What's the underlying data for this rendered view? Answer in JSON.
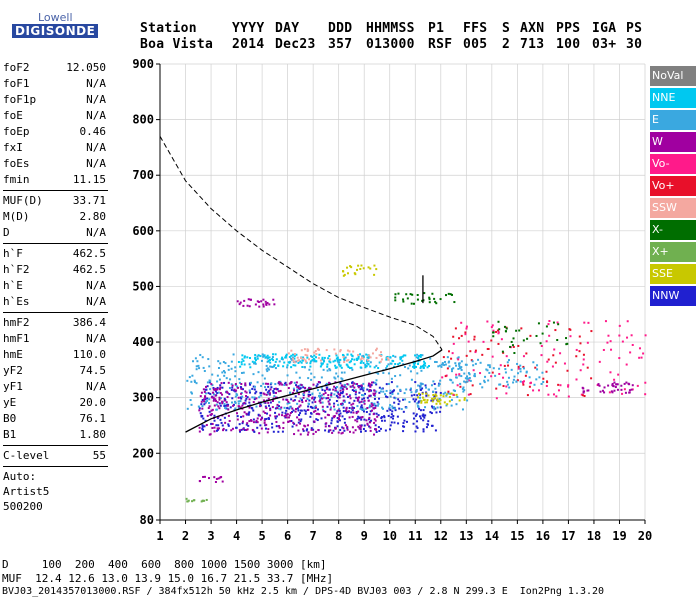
{
  "logo": {
    "line1": "Lowell",
    "line2": "DIGISONDE"
  },
  "header": {
    "row1": [
      "Station",
      "YYYY",
      "DAY",
      "DDD",
      "HHMMSS",
      "P1",
      "FFS",
      "S",
      "AXN",
      "PPS",
      "IGA",
      "PS"
    ],
    "row2": [
      "Boa Vista",
      "2014",
      "Dec23",
      "357",
      "013000",
      "RSF",
      "005",
      "2",
      "713",
      "100",
      "03+",
      "30"
    ]
  },
  "params": [
    [
      {
        "k": "foF2",
        "v": "12.050"
      },
      {
        "k": "foF1",
        "v": "N/A"
      },
      {
        "k": "foF1p",
        "v": "N/A"
      },
      {
        "k": "foE",
        "v": "N/A"
      },
      {
        "k": "foEp",
        "v": "0.46"
      },
      {
        "k": "fxI",
        "v": "N/A"
      },
      {
        "k": "foEs",
        "v": "N/A"
      },
      {
        "k": "fmin",
        "v": "11.15"
      }
    ],
    [
      {
        "k": "MUF(D)",
        "v": "33.71"
      },
      {
        "k": "M(D)",
        "v": "2.80"
      },
      {
        "k": "D",
        "v": "N/A"
      }
    ],
    [
      {
        "k": "h`F",
        "v": "462.5"
      },
      {
        "k": "h`F2",
        "v": "462.5"
      },
      {
        "k": "h`E",
        "v": "N/A"
      },
      {
        "k": "h`Es",
        "v": "N/A"
      }
    ],
    [
      {
        "k": "hmF2",
        "v": "386.4"
      },
      {
        "k": "hmF1",
        "v": "N/A"
      },
      {
        "k": "hmE",
        "v": "110.0"
      },
      {
        "k": "yF2",
        "v": "74.5"
      },
      {
        "k": "yF1",
        "v": "N/A"
      },
      {
        "k": "yE",
        "v": "20.0"
      },
      {
        "k": "B0",
        "v": "76.1"
      },
      {
        "k": "B1",
        "v": "1.80"
      }
    ],
    [
      {
        "k": "C-level",
        "v": "55"
      }
    ]
  ],
  "notes": [
    "Auto:",
    "Artist5",
    "500200"
  ],
  "legend": [
    {
      "label": "NoVal",
      "color": "#808080"
    },
    {
      "label": "NNE",
      "color": "#00c8f0"
    },
    {
      "label": "E",
      "color": "#3aa8e0"
    },
    {
      "label": "W",
      "color": "#a000a0"
    },
    {
      "label": "Vo-",
      "color": "#ff1a8a"
    },
    {
      "label": "Vo+",
      "color": "#e8102a"
    },
    {
      "label": "SSW",
      "color": "#f4a8a0"
    },
    {
      "label": "X-",
      "color": "#006e00"
    },
    {
      "label": "X+",
      "color": "#70b050"
    },
    {
      "label": "SSE",
      "color": "#c8c800"
    },
    {
      "label": "NNW",
      "color": "#2020d0"
    }
  ],
  "chart_data": {
    "type": "scatter",
    "xlabel": "",
    "ylabel": "",
    "xlim": [
      1,
      20
    ],
    "ylim": [
      80,
      900
    ],
    "xticks": [
      1,
      2,
      3,
      4,
      5,
      6,
      7,
      8,
      9,
      10,
      11,
      12,
      13,
      14,
      15,
      16,
      17,
      18,
      19,
      20
    ],
    "yticks": [
      80,
      200,
      300,
      400,
      500,
      600,
      700,
      800,
      900
    ],
    "grid": true,
    "clusters": [
      {
        "name": "NNW",
        "x": [
          2.5,
          12
        ],
        "y": [
          240,
          330
        ],
        "n": 520
      },
      {
        "name": "E",
        "x": [
          2,
          13
        ],
        "y": [
          280,
          380
        ],
        "n": 420
      },
      {
        "name": "W",
        "x": [
          2.5,
          9.5
        ],
        "y": [
          235,
          330
        ],
        "n": 380
      },
      {
        "name": "NNE",
        "x": [
          4,
          11.5
        ],
        "y": [
          355,
          380
        ],
        "n": 200
      },
      {
        "name": "SSW",
        "x": [
          6,
          10
        ],
        "y": [
          365,
          390
        ],
        "n": 60
      },
      {
        "name": "SSE",
        "x": [
          11,
          13
        ],
        "y": [
          290,
          310
        ],
        "n": 40
      },
      {
        "name": "X-",
        "x": [
          10,
          12.5
        ],
        "y": [
          470,
          490
        ],
        "n": 30
      },
      {
        "name": "W",
        "x": [
          4,
          5.5
        ],
        "y": [
          465,
          480
        ],
        "n": 25
      },
      {
        "name": "SSE",
        "x": [
          8,
          9.5
        ],
        "y": [
          520,
          540
        ],
        "n": 20
      },
      {
        "name": "Vo-",
        "x": [
          12,
          20
        ],
        "y": [
          300,
          440
        ],
        "n": 110
      },
      {
        "name": "Vo+",
        "x": [
          12,
          18
        ],
        "y": [
          300,
          430
        ],
        "n": 70
      },
      {
        "name": "E",
        "x": [
          12.5,
          16
        ],
        "y": [
          320,
          370
        ],
        "n": 80
      },
      {
        "name": "W",
        "x": [
          17.5,
          19.5
        ],
        "y": [
          310,
          330
        ],
        "n": 40
      },
      {
        "name": "X-",
        "x": [
          14,
          17
        ],
        "y": [
          380,
          440
        ],
        "n": 30
      },
      {
        "name": "W",
        "x": [
          2.5,
          3.5
        ],
        "y": [
          150,
          160
        ],
        "n": 12
      },
      {
        "name": "X+",
        "x": [
          1.8,
          2.8
        ],
        "y": [
          115,
          120
        ],
        "n": 12
      }
    ],
    "profile_curve": {
      "x": [
        2.0,
        3.0,
        4.0,
        5.0,
        6.0,
        7.0,
        8.0,
        9.0,
        10.0,
        11.0,
        11.7,
        12.05
      ],
      "y": [
        238,
        262,
        278,
        292,
        304,
        316,
        328,
        340,
        352,
        365,
        375,
        386
      ]
    },
    "trace_curve": {
      "x": [
        1.0,
        2.0,
        3.0,
        4.0,
        5.0,
        6.0,
        7.0,
        8.0,
        9.0,
        10.0,
        11.0,
        11.7,
        12.05
      ],
      "y": [
        770,
        690,
        640,
        600,
        565,
        535,
        505,
        480,
        462,
        445,
        430,
        410,
        386
      ]
    },
    "spike": {
      "x": 11.3,
      "y": [
        470,
        520
      ]
    }
  },
  "footer": {
    "line1": "D     100  200  400  600  800 1000 1500 3000 [km]",
    "line2": "MUF  12.4 12.6 13.0 13.9 15.0 16.7 21.5 33.7 [MHz]",
    "line3": "BVJ03_2014357013000.RSF / 384fx512h 50 kHz 2.5 km / DPS-4D BVJ03 003 / 2.8 N 299.3 E  Ion2Png 1.3.20"
  }
}
